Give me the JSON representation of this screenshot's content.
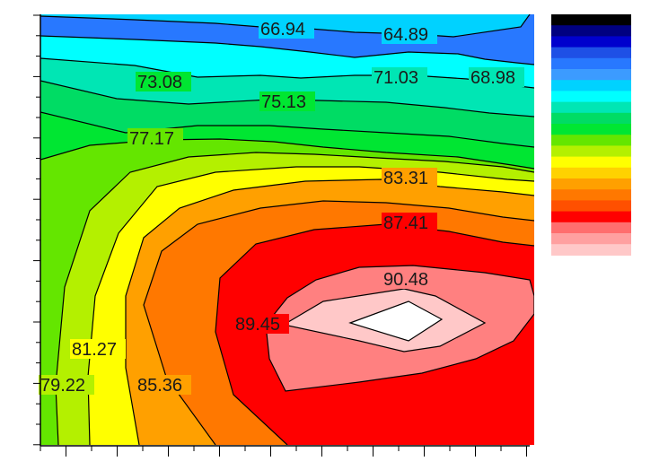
{
  "chart_data": {
    "type": "contour",
    "title": "",
    "xlabel": "",
    "ylabel": "",
    "grid": false,
    "legend": "colorbar, right, unlabeled",
    "contour_labels": [
      "66.94",
      "64.89",
      "73.08",
      "71.03",
      "68.98",
      "75.13",
      "77.17",
      "83.31",
      "87.41",
      "90.48",
      "89.45",
      "81.27",
      "79.22",
      "85.36"
    ],
    "levels": [
      64.89,
      66.94,
      68.98,
      71.03,
      73.08,
      75.13,
      77.17,
      79.22,
      81.27,
      83.31,
      85.36,
      87.41,
      89.45,
      90.48
    ],
    "colorbar_colors": [
      "#000000",
      "#000080",
      "#0000cd",
      "#1e50e6",
      "#2878ff",
      "#3c9bff",
      "#00d2ff",
      "#00ffff",
      "#00e6b4",
      "#00dc64",
      "#00e632",
      "#64e600",
      "#b4f000",
      "#ffff00",
      "#ffd200",
      "#ffa000",
      "#ff7800",
      "#ff5000",
      "#ff0000",
      "#ff6e6e",
      "#ffa0a0",
      "#ffc8c8"
    ],
    "band_colors": {
      "lt_64.89": "#1e50e6",
      "64.89_66.94": "#2878ff",
      "66.94_68.98": "#00d2ff",
      "68.98_71.03": "#00ffff",
      "71.03_73.08": "#00e6b4",
      "73.08_75.13": "#00dc64",
      "75.13_77.17": "#00e632",
      "77.17_79.22": "#64e600",
      "79.22_81.27": "#b4f000",
      "81.27_83.31": "#ffff00",
      "83.31_85.36": "#ffa000",
      "85.36_87.41": "#ff7800",
      "87.41_89.45": "#ff0000",
      "89.45_90.48": "#ff8080",
      "90.48_top": "#ffc8c8",
      "peak": "#ffffff"
    }
  }
}
